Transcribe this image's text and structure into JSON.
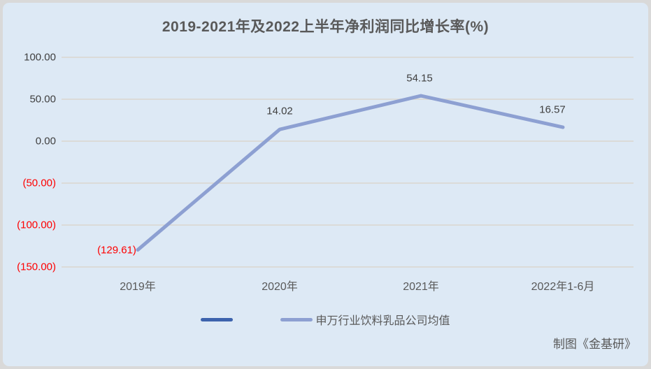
{
  "colors": {
    "page_bg": "#d9d9d9",
    "panel_bg": "#dde9f5",
    "gridline": "#dbd8d2",
    "title_text": "#595959",
    "axis_text": "#595959",
    "data_label_text": "#3f3f3f",
    "negative_text": "#fe0000",
    "series_dark": "#3d63ad",
    "series_light": "#8da0d2"
  },
  "chart_data": {
    "type": "line",
    "title": "2019-2021年及2022上半年净利润同比增长率(%)",
    "categories": [
      "2019年",
      "2020年",
      "2021年",
      "2022年1-6月"
    ],
    "series": [
      {
        "name": "",
        "color": "#3d63ad",
        "values": []
      },
      {
        "name": "申万行业饮料乳品公司均值",
        "color": "#8da0d2",
        "values": [
          -129.61,
          14.02,
          54.15,
          16.57
        ]
      }
    ],
    "data_labels": [
      "(129.61)",
      "14.02",
      "54.15",
      "16.57"
    ],
    "y_ticks": [
      {
        "label": "100.00",
        "value": 100
      },
      {
        "label": "50.00",
        "value": 50
      },
      {
        "label": "0.00",
        "value": 0
      },
      {
        "label": "(50.00)",
        "value": -50
      },
      {
        "label": "(100.00)",
        "value": -100
      },
      {
        "label": "(150.00)",
        "value": -150
      }
    ],
    "ylim": [
      -150,
      100
    ],
    "grid": true,
    "legend_position": "bottom"
  },
  "credit": "制图《金基研》"
}
